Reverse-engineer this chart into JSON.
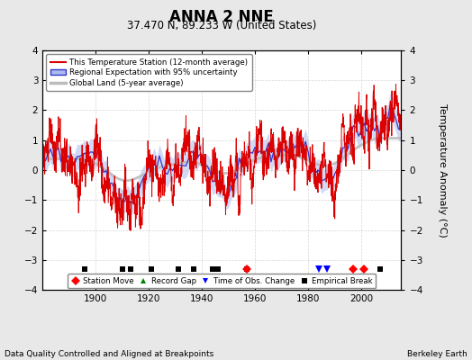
{
  "title": "ANNA 2 NNE",
  "subtitle": "37.470 N, 89.233 W (United States)",
  "ylabel": "Temperature Anomaly (°C)",
  "xlabel_note": "Data Quality Controlled and Aligned at Breakpoints",
  "credit": "Berkeley Earth",
  "ylim": [
    -4,
    4
  ],
  "xlim": [
    1880,
    2015
  ],
  "yticks": [
    -4,
    -3,
    -2,
    -1,
    0,
    1,
    2,
    3,
    4
  ],
  "xticks": [
    1900,
    1920,
    1940,
    1960,
    1980,
    2000
  ],
  "bg_color": "#e8e8e8",
  "plot_bg_color": "#ffffff",
  "legend_items": [
    {
      "label": "This Temperature Station (12-month average)",
      "color": "#dd0000"
    },
    {
      "label": "Regional Expectation with 95% uncertainty",
      "color": "#3333cc"
    },
    {
      "label": "Global Land (5-year average)",
      "color": "#aaaaaa"
    }
  ],
  "markers": {
    "station_move": {
      "years": [
        1957,
        1997,
        2001
      ],
      "color": "red",
      "marker": "D",
      "label": "Station Move"
    },
    "record_gap": {
      "years": [],
      "color": "green",
      "marker": "^",
      "label": "Record Gap"
    },
    "time_obs_change": {
      "years": [
        1984,
        1987
      ],
      "color": "blue",
      "marker": "v",
      "label": "Time of Obs. Change"
    },
    "empirical_break": {
      "years": [
        1896,
        1910,
        1913,
        1921,
        1931,
        1937,
        1944,
        1946,
        1957,
        2007
      ],
      "color": "black",
      "marker": "s",
      "label": "Empirical Break"
    }
  },
  "seed": 42,
  "start_year": 1880,
  "end_year": 2014
}
